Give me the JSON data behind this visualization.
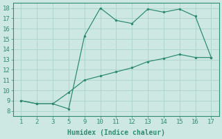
{
  "line1_x": [
    1,
    2,
    3,
    5,
    9,
    10,
    11,
    12,
    13,
    14,
    15,
    16,
    17
  ],
  "line1_y": [
    9.0,
    8.7,
    8.7,
    8.2,
    15.3,
    18.0,
    16.8,
    16.5,
    17.9,
    17.6,
    17.9,
    17.2,
    13.2
  ],
  "line2_x": [
    1,
    2,
    3,
    5,
    9,
    10,
    11,
    12,
    13,
    14,
    15,
    16,
    17
  ],
  "line2_y": [
    9.0,
    8.7,
    8.7,
    9.8,
    11.0,
    11.4,
    11.8,
    12.2,
    12.8,
    13.1,
    13.5,
    13.2,
    13.2
  ],
  "color": "#2e8b74",
  "bg_color": "#cde8e2",
  "grid_color": "#b0d4ce",
  "xlabel": "Humidex (Indice chaleur)",
  "ylim": [
    7.5,
    18.5
  ],
  "yticks": [
    8,
    9,
    10,
    11,
    12,
    13,
    14,
    15,
    16,
    17,
    18
  ],
  "xtick_labels": [
    "1",
    "2",
    "3",
    "5",
    "9",
    "10",
    "11",
    "12",
    "13",
    "14",
    "15",
    "16",
    "17"
  ],
  "xlabel_fontsize": 7,
  "tick_fontsize": 6.5
}
